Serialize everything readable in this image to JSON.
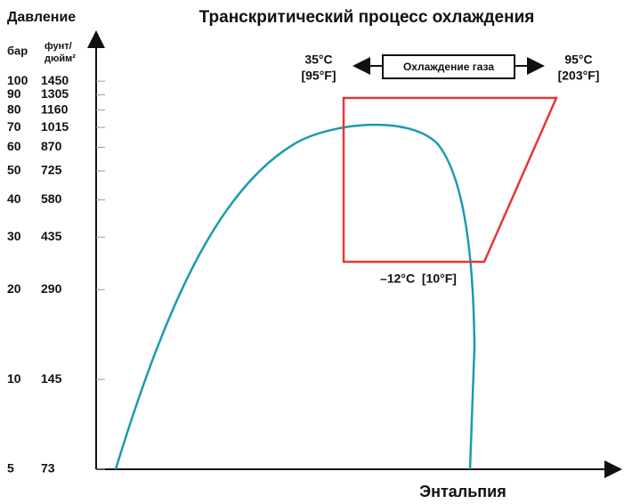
{
  "title": "Транскритический процесс охлаждения",
  "y_axis": {
    "label": "Давление",
    "unit_bar": "бар",
    "unit_psi_line1": "фунт/",
    "unit_psi_line2": "дюйм²",
    "ticks": [
      {
        "bar": 100,
        "psi": 1450
      },
      {
        "bar": 90,
        "psi": 1305
      },
      {
        "bar": 80,
        "psi": 1160
      },
      {
        "bar": 70,
        "psi": 1015
      },
      {
        "bar": 60,
        "psi": 870
      },
      {
        "bar": 50,
        "psi": 725
      },
      {
        "bar": 40,
        "psi": 580
      },
      {
        "bar": 30,
        "psi": 435
      },
      {
        "bar": 20,
        "psi": 290
      },
      {
        "bar": 10,
        "psi": 145
      },
      {
        "bar": 5,
        "psi": 73
      }
    ]
  },
  "x_axis": {
    "label": "Энтальпия"
  },
  "annotations": {
    "left_c": "35°C",
    "left_f": "[95°F]",
    "gas_cooling": "Охлаждение газа",
    "right_c": "95°C",
    "right_f": "[203°F]",
    "evaporation": "–12°C  [10°F]"
  }
}
